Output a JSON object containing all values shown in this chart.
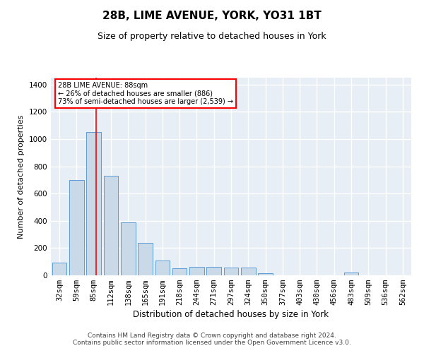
{
  "title1": "28B, LIME AVENUE, YORK, YO31 1BT",
  "title2": "Size of property relative to detached houses in York",
  "xlabel": "Distribution of detached houses by size in York",
  "ylabel": "Number of detached properties",
  "categories": [
    "32sqm",
    "59sqm",
    "85sqm",
    "112sqm",
    "138sqm",
    "165sqm",
    "191sqm",
    "218sqm",
    "244sqm",
    "271sqm",
    "297sqm",
    "324sqm",
    "350sqm",
    "377sqm",
    "403sqm",
    "430sqm",
    "456sqm",
    "483sqm",
    "509sqm",
    "536sqm",
    "562sqm"
  ],
  "values": [
    95,
    700,
    1050,
    730,
    390,
    240,
    110,
    50,
    60,
    60,
    55,
    55,
    15,
    0,
    0,
    0,
    0,
    20,
    0,
    0,
    0
  ],
  "bar_color": "#c9d9e8",
  "bar_edge_color": "#5b9bd5",
  "annotation_text": "28B LIME AVENUE: 88sqm\n← 26% of detached houses are smaller (886)\n73% of semi-detached houses are larger (2,539) →",
  "annotation_box_color": "red",
  "vline_x": 2.15,
  "ylim": [
    0,
    1450
  ],
  "yticks": [
    0,
    200,
    400,
    600,
    800,
    1000,
    1200,
    1400
  ],
  "footer1": "Contains HM Land Registry data © Crown copyright and database right 2024.",
  "footer2": "Contains public sector information licensed under the Open Government Licence v3.0.",
  "bg_color": "#e8eef5",
  "grid_color": "#ffffff",
  "title1_fontsize": 11,
  "title2_fontsize": 9,
  "xlabel_fontsize": 8.5,
  "ylabel_fontsize": 8,
  "tick_fontsize": 7.5,
  "footer_fontsize": 6.5
}
